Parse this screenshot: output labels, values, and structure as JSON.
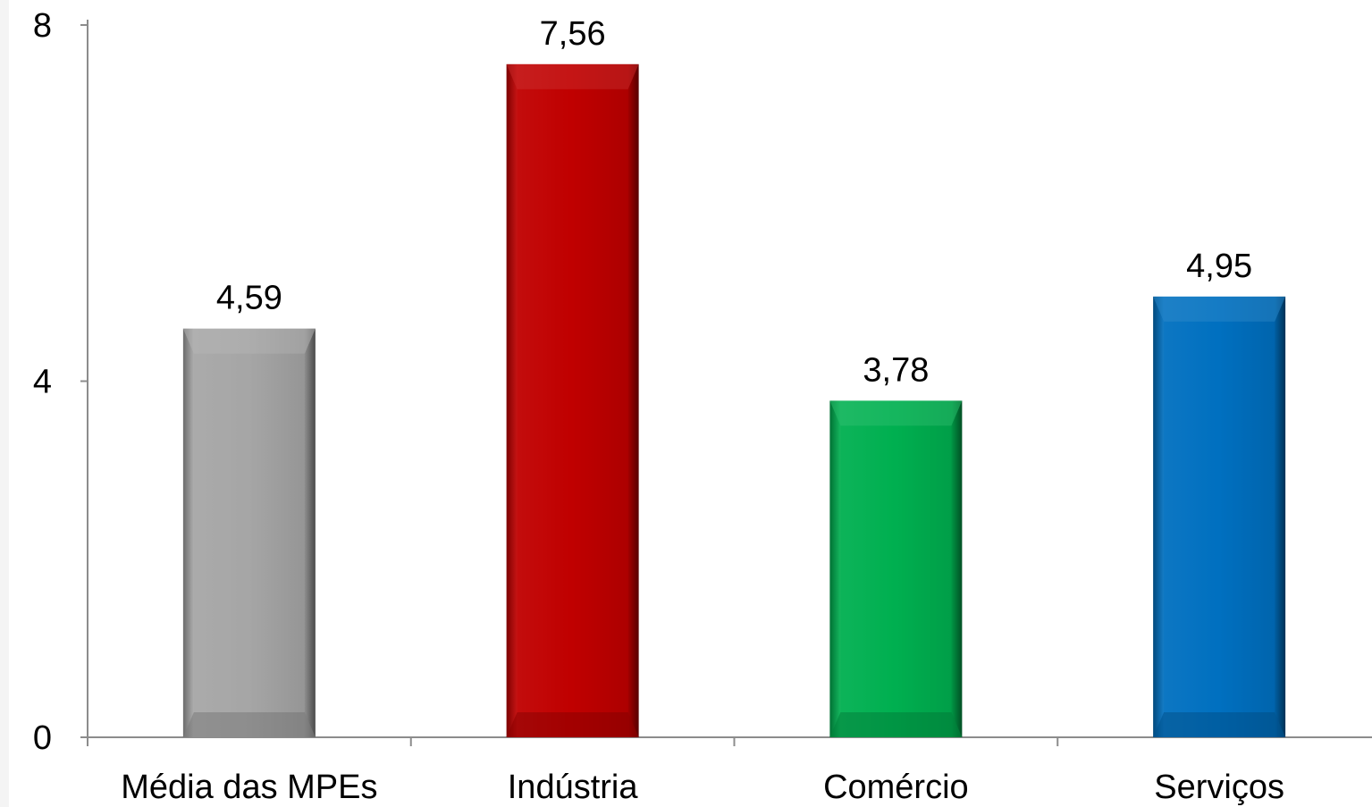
{
  "chart_data": {
    "type": "bar",
    "title": "",
    "xlabel": "",
    "ylabel": "",
    "categories": [
      "Média das MPEs",
      "Indústria",
      "Comércio",
      "Serviços"
    ],
    "values": [
      4.59,
      7.56,
      3.78,
      4.95
    ],
    "value_labels": [
      "4,59",
      "7,56",
      "3,78",
      "4,95"
    ],
    "colors": [
      "#a6a6a6",
      "#c00000",
      "#00b050",
      "#0070c0"
    ],
    "ylim": [
      0,
      8
    ],
    "yticks": [
      0,
      4,
      8
    ],
    "ytick_labels": [
      "0",
      "4",
      "8"
    ],
    "grid": false,
    "legend": "none"
  }
}
